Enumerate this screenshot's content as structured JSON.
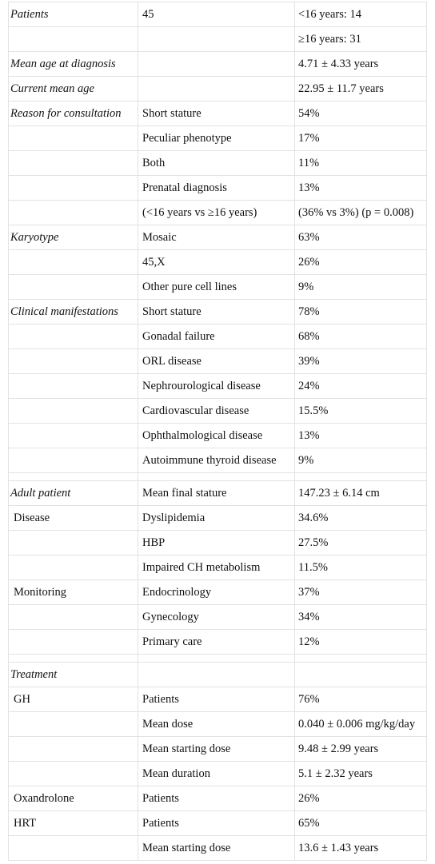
{
  "table": {
    "sections": [
      [
        [
          "Patients",
          "45",
          "<16 years: 14"
        ],
        [
          null,
          null,
          "≥16 years: 31"
        ],
        [
          "Mean age at diagnosis",
          null,
          "4.71 ± 4.33 years"
        ],
        [
          "Current mean age",
          null,
          "22.95 ± 11.7 years"
        ],
        [
          "Reason for consultation",
          "Short stature",
          "54%"
        ],
        [
          null,
          "Peculiar phenotype",
          "17%"
        ],
        [
          null,
          "Both",
          "11%"
        ],
        [
          null,
          "Prenatal diagnosis",
          "13%"
        ],
        [
          null,
          "(<16 years vs ≥16 years)",
          "(36% vs 3%) (p = 0.008)"
        ],
        [
          "Karyotype",
          "Mosaic",
          "63%"
        ],
        [
          null,
          "45,X",
          "26%"
        ],
        [
          null,
          "Other pure cell lines",
          "9%"
        ],
        [
          "Clinical manifestations",
          "Short stature",
          "78%"
        ],
        [
          null,
          "Gonadal failure",
          "68%"
        ],
        [
          null,
          "ORL disease",
          "39%"
        ],
        [
          null,
          "Nephrourological disease",
          "24%"
        ],
        [
          null,
          "Cardiovascular disease",
          "15.5%"
        ],
        [
          null,
          "Ophthalmological disease",
          "13%"
        ],
        [
          null,
          "Autoimmune thyroid disease",
          "9%"
        ]
      ],
      [
        [
          "Adult patient",
          "Mean final stature",
          "147.23 ± 6.14 cm"
        ],
        [
          "Disease",
          "Dyslipidemia",
          "34.6%"
        ],
        [
          null,
          "HBP",
          "27.5%"
        ],
        [
          null,
          "Impaired CH metabolism",
          "11.5%"
        ],
        [
          "Monitoring",
          "Endocrinology",
          "37%"
        ],
        [
          null,
          "Gynecology",
          "34%"
        ],
        [
          null,
          "Primary care",
          "12%"
        ]
      ],
      [
        [
          "Treatment",
          null,
          null
        ],
        [
          "GH",
          "Patients",
          "76%"
        ],
        [
          null,
          "Mean dose",
          "0.040 ± 0.006 mg/kg/day"
        ],
        [
          null,
          "Mean starting dose",
          "9.48 ± 2.99 years"
        ],
        [
          null,
          "Mean duration",
          "5.1 ± 2.32 years"
        ],
        [
          "Oxandrolone",
          "Patients",
          "26%"
        ],
        [
          "HRT",
          "Patients",
          "65%"
        ],
        [
          null,
          "Mean starting dose",
          "13.6 ± 1.43 years"
        ]
      ]
    ]
  }
}
